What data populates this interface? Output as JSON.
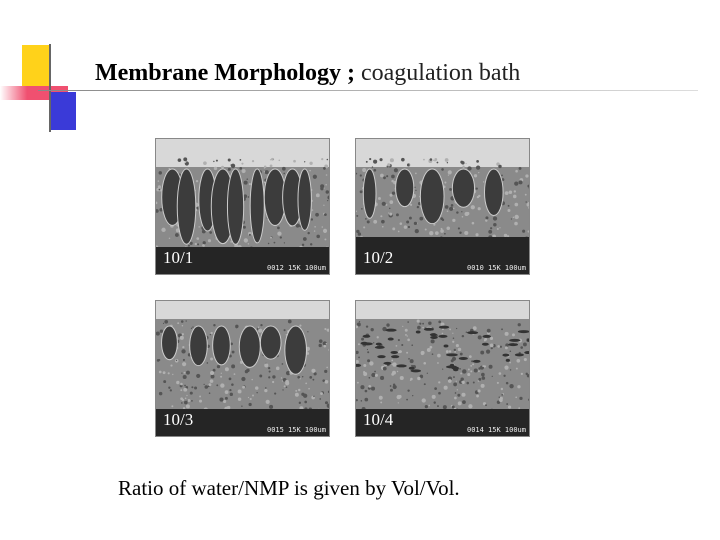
{
  "header": {
    "title_bold": "Membrane Morphology ;",
    "title_rest": "coagulation bath"
  },
  "images": [
    {
      "label": "10/1",
      "scale_text": "0012 15K 100um"
    },
    {
      "label": "10/2",
      "scale_text": "0010 15K 100um"
    },
    {
      "label": "10/3",
      "scale_text": "0015 15K 100um"
    },
    {
      "label": "10/4",
      "scale_text": "0014 15K 100um"
    }
  ],
  "caption": "Ratio of water/NMP is given by Vol/Vol."
}
